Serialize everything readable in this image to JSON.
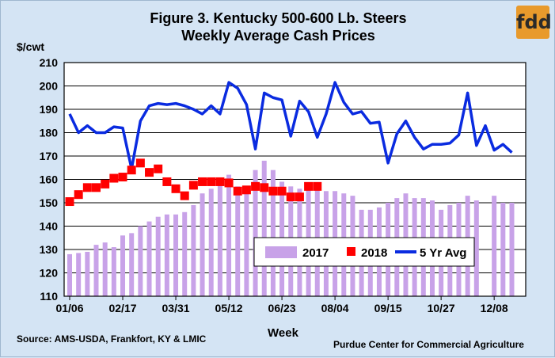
{
  "title": {
    "line1": "Figure 3. Kentucky 500-600 Lb. Steers",
    "line2": "Weekly Average Cash Prices"
  },
  "logo_text": "fdd",
  "source": "Source:  AMS-USDA,  Frankfort, KY & LMIC",
  "credit": "Purdue Center for Commercial Agriculture",
  "colors": {
    "background": "#d4e4f4",
    "bars_2017": "#c8a2e8",
    "markers_2018": "#ff0000",
    "line_5yr": "#0a2be0",
    "logo": "#e89a2c"
  },
  "chart_data": {
    "type": "bar",
    "title": "Figure 3. Kentucky 500-600 Lb. Steers Weekly Average Cash Prices",
    "xlabel": "Week",
    "ylabel": "$/cwt",
    "ylim": [
      110,
      210
    ],
    "yticks": [
      110,
      120,
      130,
      140,
      150,
      160,
      170,
      180,
      190,
      200,
      210
    ],
    "grid": true,
    "legend_position": "bottom-center",
    "x_tick_labels": [
      {
        "week": 1,
        "label": "01/06"
      },
      {
        "week": 7,
        "label": "02/17"
      },
      {
        "week": 13,
        "label": "03/31"
      },
      {
        "week": 19,
        "label": "05/12"
      },
      {
        "week": 25,
        "label": "06/23"
      },
      {
        "week": 31,
        "label": "08/04"
      },
      {
        "week": 37,
        "label": "09/15"
      },
      {
        "week": 43,
        "label": "10/27"
      },
      {
        "week": 49,
        "label": "12/08"
      }
    ],
    "series": [
      {
        "name": "2017",
        "type": "bar",
        "weeks": [
          1,
          2,
          3,
          4,
          5,
          6,
          7,
          8,
          9,
          10,
          11,
          12,
          13,
          14,
          15,
          16,
          17,
          18,
          19,
          20,
          21,
          22,
          23,
          24,
          25,
          26,
          27,
          28,
          29,
          30,
          31,
          32,
          33,
          34,
          35,
          36,
          37,
          38,
          39,
          40,
          41,
          42,
          43,
          44,
          45,
          46,
          47,
          48,
          49,
          50,
          51
        ],
        "values": [
          128,
          128.5,
          129,
          132,
          133,
          131,
          136,
          137,
          140,
          142,
          144,
          145,
          145,
          146,
          149,
          154,
          156,
          158,
          162,
          157,
          157,
          164,
          168,
          164,
          159,
          157,
          156,
          156,
          156,
          155,
          155,
          154,
          153,
          147,
          147,
          148,
          150,
          152,
          154,
          152,
          152,
          151,
          147,
          149,
          150,
          153,
          151,
          null,
          153,
          150,
          150
        ]
      },
      {
        "name": "2018",
        "type": "marker",
        "weeks": [
          1,
          2,
          3,
          4,
          5,
          6,
          7,
          8,
          9,
          10,
          11,
          12,
          13,
          14,
          15,
          16,
          17,
          18,
          19,
          20,
          21,
          22,
          23,
          24,
          25,
          26,
          27,
          28,
          29
        ],
        "values": [
          150.5,
          153.5,
          156.5,
          156.5,
          158,
          160.5,
          161,
          164,
          167,
          163,
          164.5,
          159,
          156,
          153,
          157.5,
          159,
          159,
          159,
          158.5,
          155,
          155.5,
          157,
          156.5,
          155,
          155,
          152.5,
          152.5,
          157,
          157
        ]
      },
      {
        "name": "5 Yr Avg",
        "type": "line",
        "weeks": [
          1,
          2,
          3,
          4,
          5,
          6,
          7,
          8,
          9,
          10,
          11,
          12,
          13,
          14,
          15,
          16,
          17,
          18,
          19,
          20,
          21,
          22,
          23,
          24,
          25,
          26,
          27,
          28,
          29,
          30,
          31,
          32,
          33,
          34,
          35,
          36,
          37,
          38,
          39,
          40,
          41,
          42,
          43,
          44,
          45,
          46,
          47,
          48,
          49,
          50,
          51
        ],
        "values": [
          188,
          180,
          183,
          180,
          180,
          182.5,
          182,
          164.5,
          185,
          191.5,
          192.5,
          192,
          192.5,
          191.5,
          190,
          188,
          191.5,
          188,
          201.5,
          199,
          192,
          173,
          197,
          195,
          194,
          178.5,
          193.5,
          189,
          178,
          188,
          201.5,
          193,
          188,
          189,
          184,
          184.5,
          167,
          179.5,
          185,
          178,
          173,
          175,
          175,
          175.5,
          179,
          197,
          174.5,
          183,
          172.5,
          175,
          171.5
        ]
      }
    ]
  }
}
